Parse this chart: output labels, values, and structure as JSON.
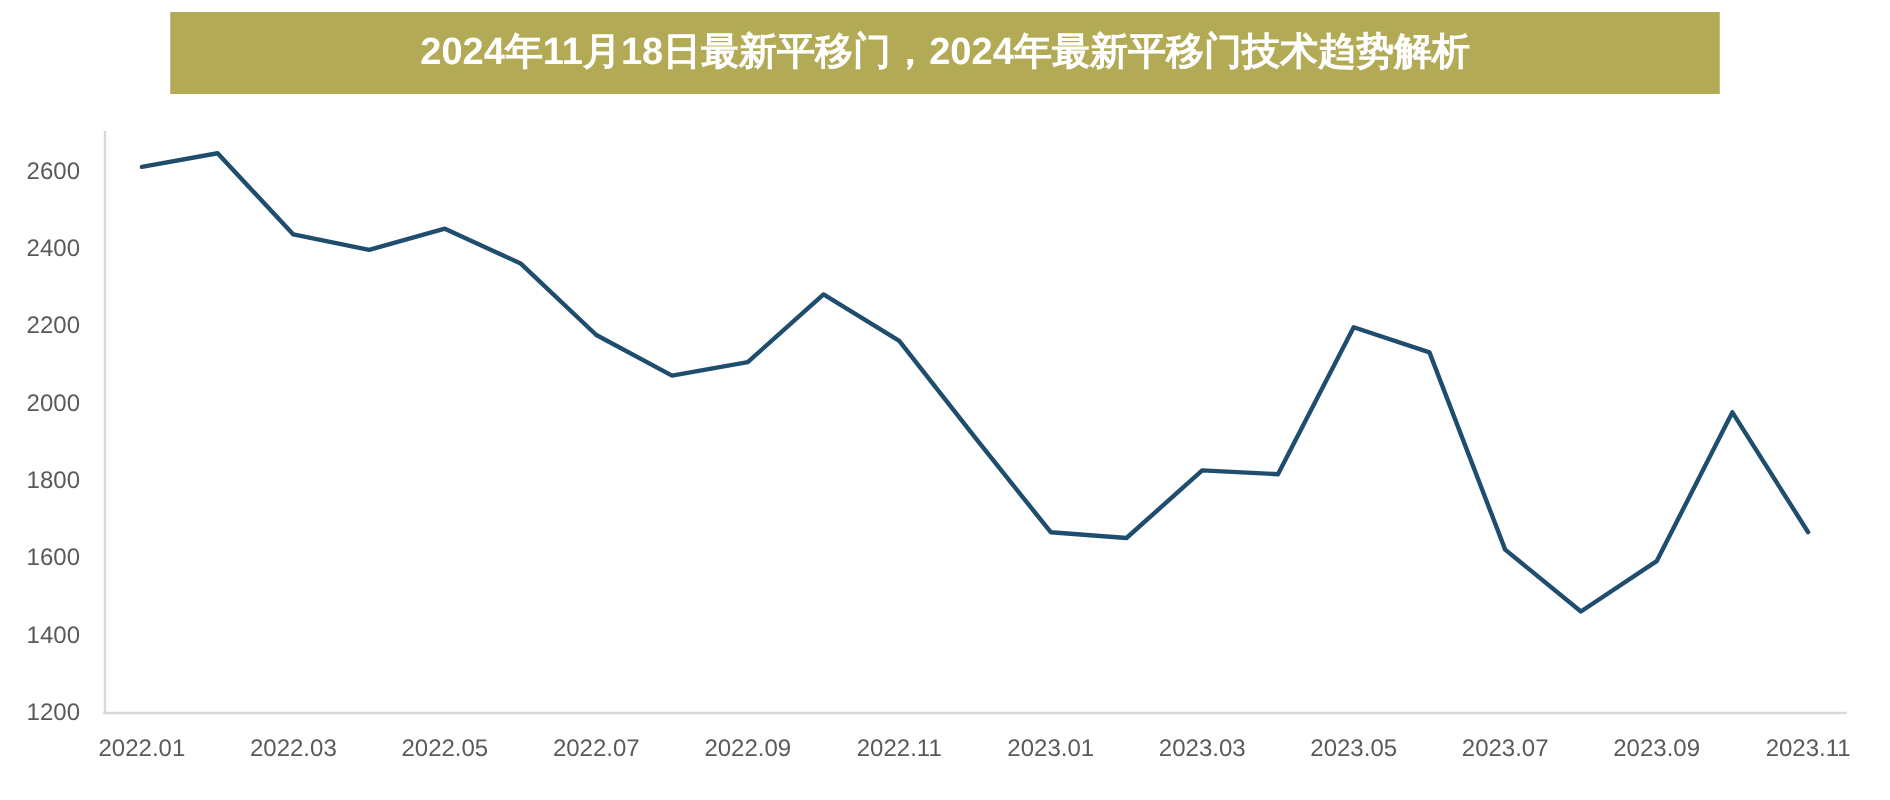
{
  "chart_data": {
    "type": "line",
    "title": "2024年11月18日最新平移门，2024年最新平移门技术趋势解析",
    "categories": [
      "2022.01",
      null,
      "2022.03",
      null,
      "2022.05",
      null,
      "2022.07",
      null,
      "2022.09",
      null,
      "2022.11",
      null,
      "2023.01",
      null,
      "2023.03",
      null,
      "2023.05",
      null,
      "2023.07",
      null,
      "2023.09",
      null,
      "2023.11"
    ],
    "values": [
      2610,
      2645,
      2435,
      2395,
      2450,
      2360,
      2175,
      2070,
      2105,
      2280,
      2160,
      1910,
      1665,
      1650,
      1825,
      1815,
      2195,
      2130,
      1620,
      1460,
      1590,
      1975,
      1665
    ],
    "color": "#1f4d6e",
    "ylim": [
      1200,
      2700
    ],
    "yticks": [
      1200,
      1400,
      1600,
      1800,
      2000,
      2200,
      2400,
      2600
    ],
    "marker": "none",
    "line_style": "solid"
  }
}
